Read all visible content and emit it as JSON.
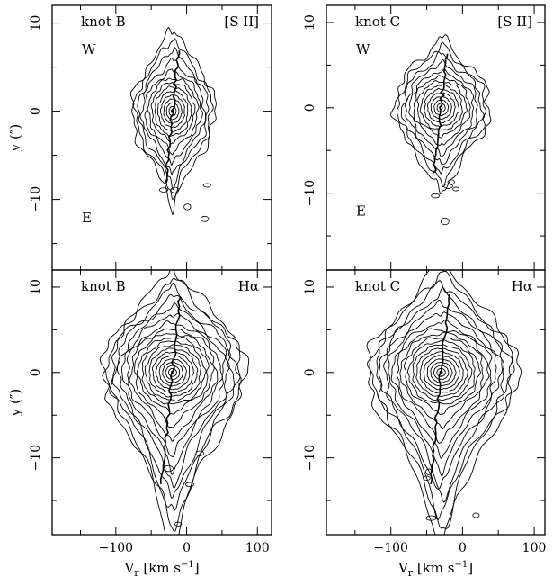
{
  "chart_data": [
    {
      "type": "contour",
      "panel_label": "knot B",
      "line_label": "[S II]",
      "direction_labels": {
        "top": "W",
        "bottom": "E"
      },
      "xlabel": "",
      "ylabel": "y (″)",
      "xlim": [
        -190,
        120
      ],
      "ylim": [
        -18,
        12
      ],
      "xticks": [
        -100,
        0,
        100
      ],
      "yticks": [
        10,
        0,
        -10
      ],
      "emission_peak": {
        "x": -20,
        "y": 0
      }
    },
    {
      "type": "contour",
      "panel_label": "knot C",
      "line_label": "[S II]",
      "direction_labels": {
        "top": "W",
        "bottom": "E"
      },
      "xlabel": "",
      "ylabel": "",
      "xlim": [
        -190,
        115
      ],
      "ylim": [
        -19,
        12
      ],
      "xticks": [
        -100,
        0,
        100
      ],
      "yticks": [
        10,
        0,
        -10
      ],
      "emission_peak": {
        "x": -30,
        "y": 0
      }
    },
    {
      "type": "contour",
      "panel_label": "knot B",
      "line_label": "Hα",
      "xlabel": "V​ r [km s⁻¹]",
      "ylabel": "y (″)",
      "xlim": [
        -190,
        120
      ],
      "ylim": [
        -19,
        12
      ],
      "xticks": [
        -100,
        0,
        100
      ],
      "yticks": [
        10,
        0,
        -10
      ],
      "emission_peak": {
        "x": -20,
        "y": 0
      }
    },
    {
      "type": "contour",
      "panel_label": "knot C",
      "line_label": "Hα",
      "xlabel": "V​ r [km s⁻¹]",
      "ylabel": "",
      "xlim": [
        -190,
        115
      ],
      "ylim": [
        -19,
        12
      ],
      "xticks": [
        -100,
        0,
        100
      ],
      "yticks": [
        10,
        0,
        -10
      ],
      "emission_peak": {
        "x": -30,
        "y": 0
      }
    }
  ],
  "axis_text": {
    "xlabel_main": "V",
    "xlabel_sub": "r",
    "xlabel_unit": " [km s",
    "xlabel_exp": "−1",
    "xlabel_end": "]",
    "ylabel": "y (″)"
  }
}
